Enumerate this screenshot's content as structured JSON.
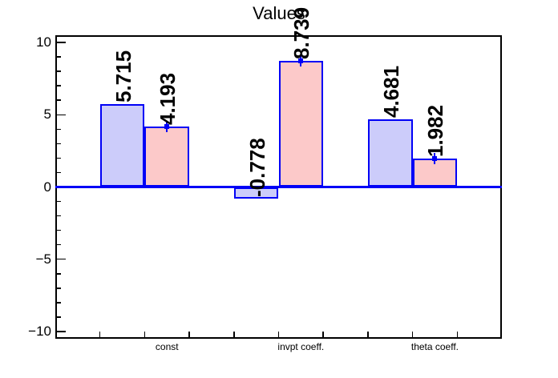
{
  "chart_data": {
    "type": "bar",
    "title": "Values",
    "categories": [
      "const",
      "invpt coeff.",
      "theta coeff."
    ],
    "series": [
      {
        "name": "blue-series",
        "fill": "#ccccfa",
        "values": [
          5.715,
          -0.778,
          4.681
        ],
        "labels": [
          "5.715",
          "-0.778",
          "4.681"
        ],
        "error_markers": false
      },
      {
        "name": "pink-series",
        "fill": "#fcc9c9",
        "values": [
          4.193,
          8.739,
          1.982
        ],
        "labels": [
          "4.193",
          "8.739",
          "1.982"
        ],
        "error_markers": true
      }
    ],
    "colors": {
      "bar_border": "#0000f6",
      "zero_line": "#0000f6",
      "axis": "#000000",
      "text": "#000000"
    },
    "y_axis": {
      "min": -10.5,
      "max": 10.5,
      "major_ticks": [
        {
          "value": 10,
          "label": "10"
        },
        {
          "value": 5,
          "label": "5"
        },
        {
          "value": 0,
          "label": "0"
        },
        {
          "value": -5,
          "label": "−5"
        },
        {
          "value": -10,
          "label": "−10"
        }
      ],
      "minor_step": 1
    },
    "x_axis": {
      "subdivisions": 10
    },
    "zero_line": true,
    "grid": false,
    "legend": "none"
  }
}
